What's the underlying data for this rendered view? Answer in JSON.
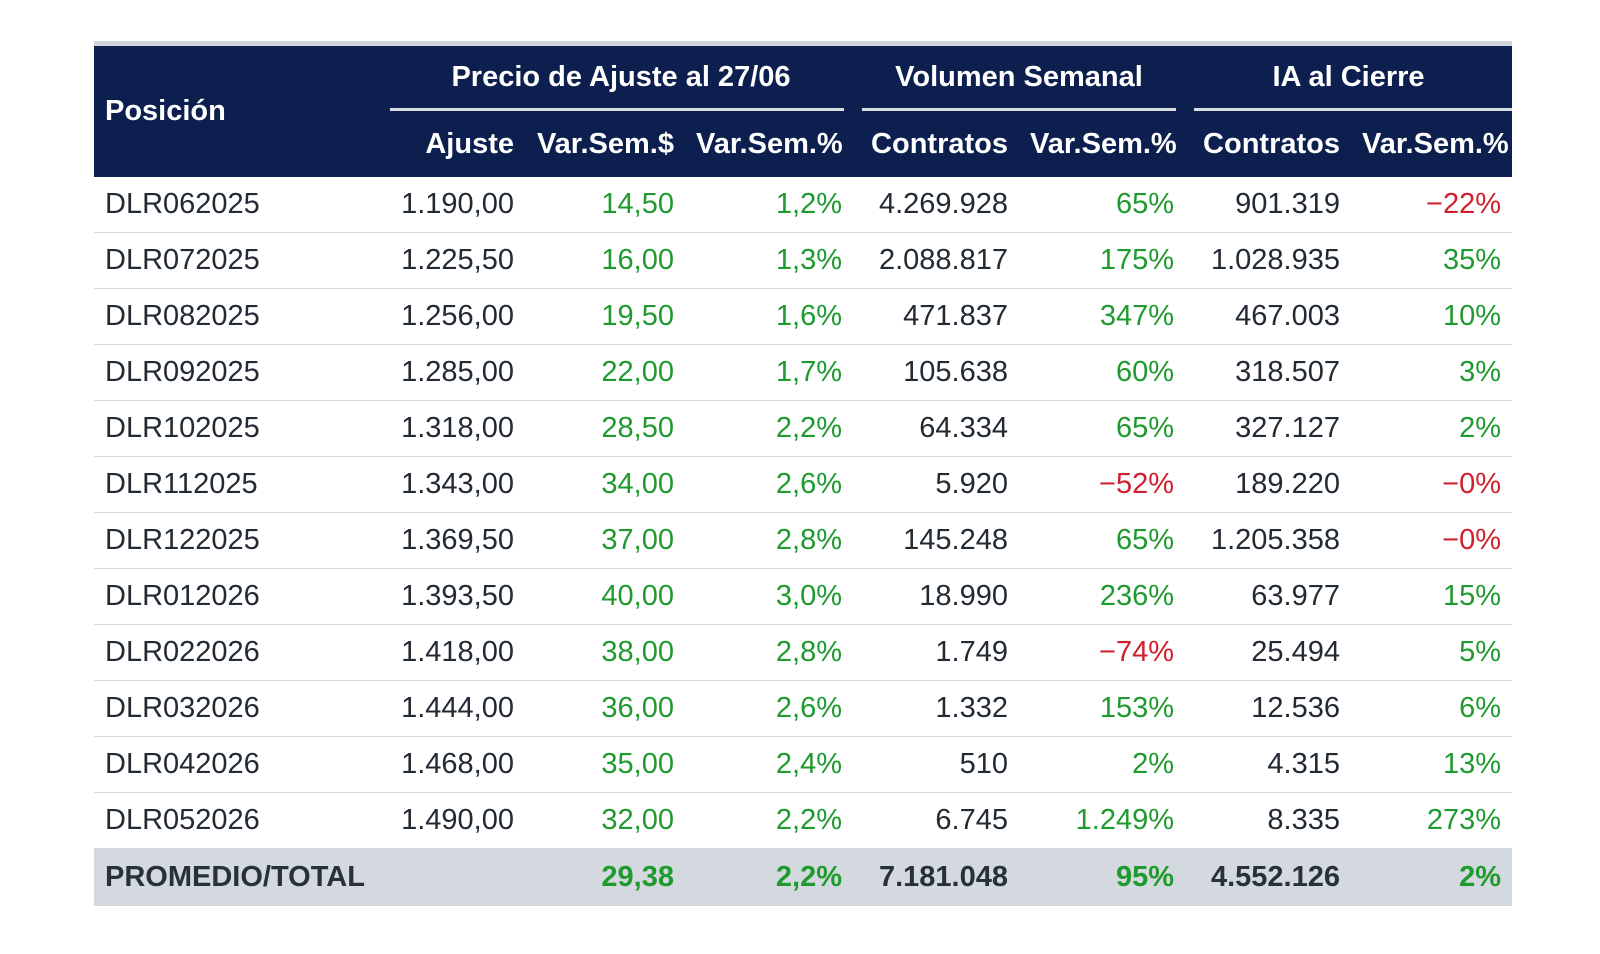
{
  "header": {
    "position": "Posición",
    "group_price": "Precio de Ajuste al 27/06",
    "group_volume": "Volumen Semanal",
    "group_oi": "IA al Cierre",
    "col_adjust": "Ajuste",
    "col_var_abs": "Var.Sem.$",
    "col_var_pct": "Var.Sem.%",
    "col_vol_contracts": "Contratos",
    "col_vol_var": "Var.Sem.%",
    "col_oi_contracts": "Contratos",
    "col_oi_var": "Var.Sem.%"
  },
  "colors": {
    "header_bg": "#0c1f4f",
    "positive": "#1f9a2e",
    "negative": "#d0202d",
    "footer_bg": "#d3d9de"
  },
  "rows": [
    {
      "pos": "DLR062025",
      "adj": "1.190,00",
      "var_abs": "14,50",
      "var_pct": "1,2%",
      "vol": "4.269.928",
      "vol_var": "65%",
      "vol_var_neg": false,
      "oi": "901.319",
      "oi_var": "−22%",
      "oi_var_neg": true
    },
    {
      "pos": "DLR072025",
      "adj": "1.225,50",
      "var_abs": "16,00",
      "var_pct": "1,3%",
      "vol": "2.088.817",
      "vol_var": "175%",
      "vol_var_neg": false,
      "oi": "1.028.935",
      "oi_var": "35%",
      "oi_var_neg": false
    },
    {
      "pos": "DLR082025",
      "adj": "1.256,00",
      "var_abs": "19,50",
      "var_pct": "1,6%",
      "vol": "471.837",
      "vol_var": "347%",
      "vol_var_neg": false,
      "oi": "467.003",
      "oi_var": "10%",
      "oi_var_neg": false
    },
    {
      "pos": "DLR092025",
      "adj": "1.285,00",
      "var_abs": "22,00",
      "var_pct": "1,7%",
      "vol": "105.638",
      "vol_var": "60%",
      "vol_var_neg": false,
      "oi": "318.507",
      "oi_var": "3%",
      "oi_var_neg": false
    },
    {
      "pos": "DLR102025",
      "adj": "1.318,00",
      "var_abs": "28,50",
      "var_pct": "2,2%",
      "vol": "64.334",
      "vol_var": "65%",
      "vol_var_neg": false,
      "oi": "327.127",
      "oi_var": "2%",
      "oi_var_neg": false
    },
    {
      "pos": "DLR112025",
      "adj": "1.343,00",
      "var_abs": "34,00",
      "var_pct": "2,6%",
      "vol": "5.920",
      "vol_var": "−52%",
      "vol_var_neg": true,
      "oi": "189.220",
      "oi_var": "−0%",
      "oi_var_neg": true
    },
    {
      "pos": "DLR122025",
      "adj": "1.369,50",
      "var_abs": "37,00",
      "var_pct": "2,8%",
      "vol": "145.248",
      "vol_var": "65%",
      "vol_var_neg": false,
      "oi": "1.205.358",
      "oi_var": "−0%",
      "oi_var_neg": true
    },
    {
      "pos": "DLR012026",
      "adj": "1.393,50",
      "var_abs": "40,00",
      "var_pct": "3,0%",
      "vol": "18.990",
      "vol_var": "236%",
      "vol_var_neg": false,
      "oi": "63.977",
      "oi_var": "15%",
      "oi_var_neg": false
    },
    {
      "pos": "DLR022026",
      "adj": "1.418,00",
      "var_abs": "38,00",
      "var_pct": "2,8%",
      "vol": "1.749",
      "vol_var": "−74%",
      "vol_var_neg": true,
      "oi": "25.494",
      "oi_var": "5%",
      "oi_var_neg": false
    },
    {
      "pos": "DLR032026",
      "adj": "1.444,00",
      "var_abs": "36,00",
      "var_pct": "2,6%",
      "vol": "1.332",
      "vol_var": "153%",
      "vol_var_neg": false,
      "oi": "12.536",
      "oi_var": "6%",
      "oi_var_neg": false
    },
    {
      "pos": "DLR042026",
      "adj": "1.468,00",
      "var_abs": "35,00",
      "var_pct": "2,4%",
      "vol": "510",
      "vol_var": "2%",
      "vol_var_neg": false,
      "oi": "4.315",
      "oi_var": "13%",
      "oi_var_neg": false
    },
    {
      "pos": "DLR052026",
      "adj": "1.490,00",
      "var_abs": "32,00",
      "var_pct": "2,2%",
      "vol": "6.745",
      "vol_var": "1.249%",
      "vol_var_neg": false,
      "oi": "8.335",
      "oi_var": "273%",
      "oi_var_neg": false
    }
  ],
  "footer": {
    "label": "PROMEDIO/TOTAL",
    "adj": "",
    "var_abs": "29,38",
    "var_pct": "2,2%",
    "vol": "7.181.048",
    "vol_var": "95%",
    "oi": "4.552.126",
    "oi_var": "2%"
  }
}
